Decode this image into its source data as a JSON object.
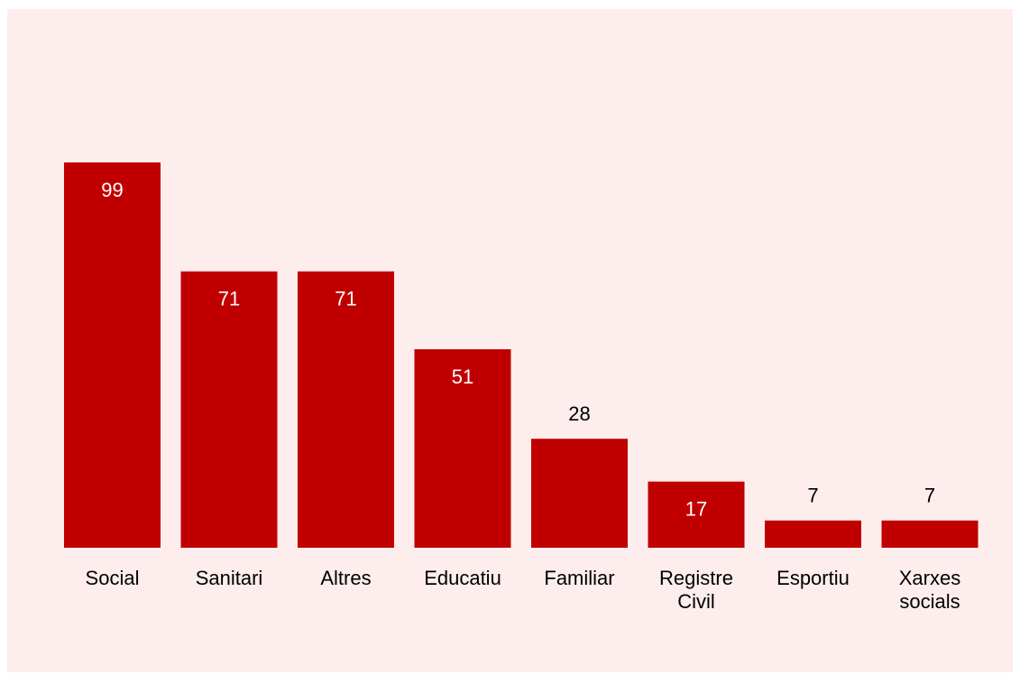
{
  "chart_data": {
    "type": "bar",
    "categories": [
      "Social",
      "Sanitari",
      "Altres",
      "Educatiu",
      "Familiar",
      "Registre Civil",
      "Esportiu",
      "Xarxes socials"
    ],
    "values": [
      99,
      71,
      71,
      51,
      28,
      17,
      7,
      7
    ],
    "color": "#c00000"
  }
}
